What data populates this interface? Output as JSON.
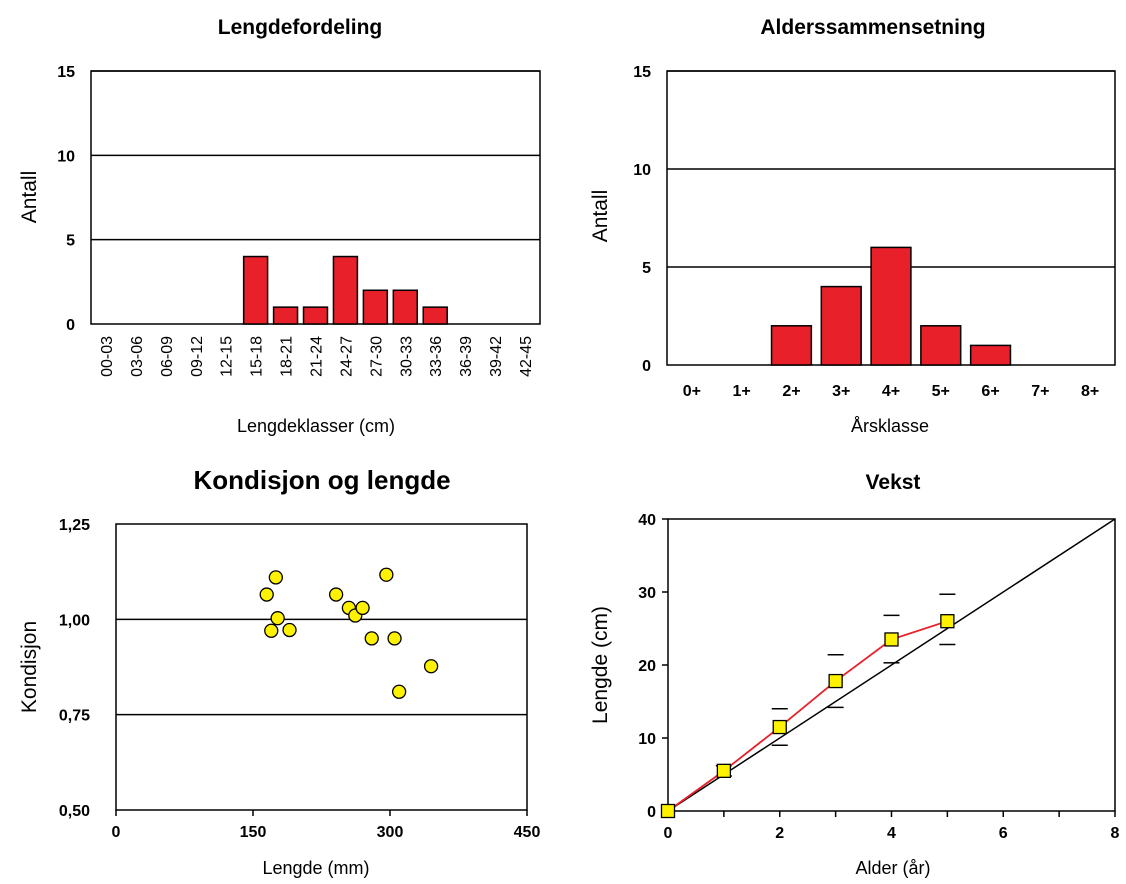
{
  "colors": {
    "bar": "#e8202a",
    "marker": "#fff200",
    "growth_line": "#e8202a",
    "grid": "#000000"
  },
  "chart_data": [
    {
      "type": "bar",
      "title": "Lengdefordeling",
      "xlabel": "Lengdeklasser (cm)",
      "ylabel": "Antall",
      "ylim": [
        0,
        15
      ],
      "yticks": [
        "0",
        "5",
        "10",
        "15"
      ],
      "grid": true,
      "categories": [
        "00-03",
        "03-06",
        "06-09",
        "09-12",
        "12-15",
        "15-18",
        "18-21",
        "21-24",
        "24-27",
        "27-30",
        "30-33",
        "33-36",
        "36-39",
        "39-42",
        "42-45"
      ],
      "values": [
        0,
        0,
        0,
        0,
        0,
        4,
        1,
        1,
        4,
        2,
        2,
        1,
        0,
        0,
        0
      ]
    },
    {
      "type": "bar",
      "title": "Alderssammensetning",
      "xlabel": "Årsklasse",
      "ylabel": "Antall",
      "ylim": [
        0,
        15
      ],
      "yticks": [
        "0",
        "5",
        "10",
        "15"
      ],
      "grid": true,
      "categories": [
        "0+",
        "1+",
        "2+",
        "3+",
        "4+",
        "5+",
        "6+",
        "7+",
        "8+"
      ],
      "values": [
        0,
        0,
        2,
        4,
        6,
        2,
        1,
        0,
        0
      ]
    },
    {
      "type": "scatter",
      "title": "Kondisjon og lengde",
      "xlabel": "Lengde (mm)",
      "ylabel": "Kondisjon",
      "xlim": [
        0,
        450
      ],
      "ylim": [
        0.5,
        1.25
      ],
      "xticks": [
        "0",
        "150",
        "300",
        "450"
      ],
      "yticks": [
        "0,50",
        "0,75",
        "1,00",
        "1,25"
      ],
      "grid": true,
      "points": [
        {
          "x": 165,
          "y": 1.065
        },
        {
          "x": 175,
          "y": 1.11
        },
        {
          "x": 177,
          "y": 1.003
        },
        {
          "x": 170,
          "y": 0.97
        },
        {
          "x": 190,
          "y": 0.972
        },
        {
          "x": 241,
          "y": 1.065
        },
        {
          "x": 255,
          "y": 1.03
        },
        {
          "x": 262,
          "y": 1.01
        },
        {
          "x": 270,
          "y": 1.03
        },
        {
          "x": 280,
          "y": 0.95
        },
        {
          "x": 296,
          "y": 1.117
        },
        {
          "x": 305,
          "y": 0.95
        },
        {
          "x": 310,
          "y": 0.81
        },
        {
          "x": 345,
          "y": 0.877
        }
      ]
    },
    {
      "type": "line",
      "title": "Vekst",
      "xlabel": "Alder (år)",
      "ylabel": "Lengde (cm)",
      "xlim": [
        0,
        8
      ],
      "ylim": [
        0,
        40
      ],
      "xticks": [
        "0",
        "2",
        "4",
        "6",
        "8"
      ],
      "yticks": [
        "0",
        "10",
        "20",
        "30",
        "40"
      ],
      "grid": false,
      "series": [
        {
          "x": [
            0,
            1,
            2,
            3,
            4,
            5
          ],
          "values": [
            0,
            5.5,
            11.5,
            17.8,
            23.5,
            26
          ]
        }
      ],
      "error_bars": [
        {
          "x": 1,
          "low": 4.8,
          "high": 6.2
        },
        {
          "x": 2,
          "low": 9.0,
          "high": 14.0
        },
        {
          "x": 3,
          "low": 14.2,
          "high": 21.4
        },
        {
          "x": 4,
          "low": 20.3,
          "high": 26.8
        },
        {
          "x": 5,
          "low": 22.8,
          "high": 29.7
        }
      ],
      "reference_line": {
        "x": [
          0,
          8
        ],
        "values": [
          0,
          40
        ]
      }
    }
  ]
}
